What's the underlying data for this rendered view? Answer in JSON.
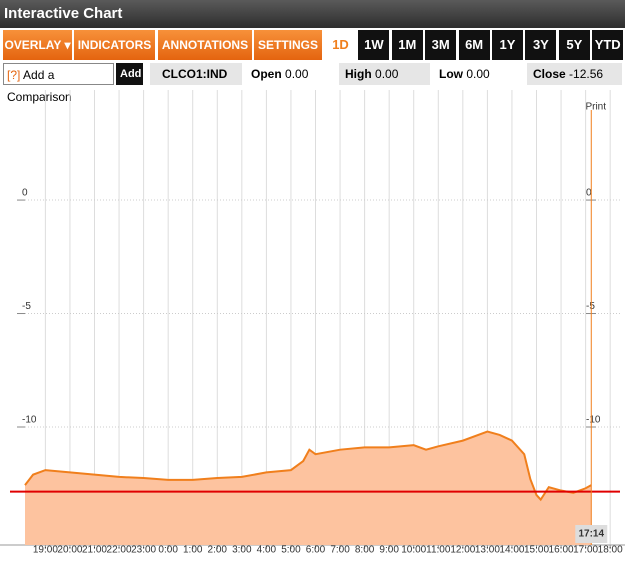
{
  "header": {
    "title": "Interactive Chart"
  },
  "toolbar": {
    "menus": [
      "OVERLAY",
      "INDICATORS",
      "ANNOTATIONS",
      "SETTINGS"
    ],
    "ranges": [
      "1D",
      "1W",
      "1M",
      "3M",
      "6M",
      "1Y",
      "3Y",
      "5Y",
      "YTD"
    ],
    "active_range_index": 0
  },
  "info_bar": {
    "help": "[?]",
    "comparison_placeholder": "Add a Comparison",
    "add_button": "Add",
    "ticker": "CLCO1:IND",
    "quotes": [
      {
        "label": "Open",
        "value": "0.00"
      },
      {
        "label": "High",
        "value": "0.00"
      },
      {
        "label": "Low",
        "value": "0.00"
      },
      {
        "label": "Close",
        "value": "-12.56"
      }
    ]
  },
  "chart_data": {
    "type": "area",
    "print_label": "Print",
    "x": [
      -0.83,
      -0.5,
      0,
      1,
      2,
      3,
      4,
      5,
      6,
      7,
      8,
      9,
      10,
      10.5,
      10.75,
      11,
      12,
      13,
      14,
      15,
      15.5,
      16,
      17,
      18,
      18.5,
      19,
      19.5,
      19.75,
      20,
      20.17,
      20.5,
      21,
      21.5,
      22,
      22.23
    ],
    "series": [
      {
        "color": "#f07f1c",
        "fill": "#fdc39f",
        "values": [
          -12.56,
          -12.1,
          -11.9,
          -12.0,
          -12.1,
          -12.2,
          -12.25,
          -12.33,
          -12.33,
          -12.25,
          -12.2,
          -12.0,
          -11.9,
          -11.5,
          -11.0,
          -11.2,
          -11.0,
          -10.9,
          -10.9,
          -10.8,
          -11.0,
          -10.85,
          -10.6,
          -10.2,
          -10.35,
          -10.6,
          -11.2,
          -12.3,
          -13.0,
          -13.2,
          -12.65,
          -12.8,
          -12.9,
          -12.7,
          -12.56
        ]
      }
    ],
    "reference_line": {
      "value": -12.85,
      "color": "#e00000"
    },
    "current_time": {
      "value": 22.23,
      "label": "17:14",
      "color": "#f07f1c"
    },
    "xlim": [
      -0.83,
      23.4
    ],
    "ylim": [
      -15.2,
      4.85
    ],
    "xticks": [
      {
        "value": 0,
        "label": "19:00"
      },
      {
        "value": 1,
        "label": "20:00"
      },
      {
        "value": 2,
        "label": "21:00"
      },
      {
        "value": 3,
        "label": "22:00"
      },
      {
        "value": 4,
        "label": "23:00"
      },
      {
        "value": 5,
        "label": "0:00"
      },
      {
        "value": 6,
        "label": "1:00"
      },
      {
        "value": 7,
        "label": "2:00"
      },
      {
        "value": 8,
        "label": "3:00"
      },
      {
        "value": 9,
        "label": "4:00"
      },
      {
        "value": 10,
        "label": "5:00"
      },
      {
        "value": 11,
        "label": "6:00"
      },
      {
        "value": 12,
        "label": "7:00"
      },
      {
        "value": 13,
        "label": "8:00"
      },
      {
        "value": 14,
        "label": "9:00"
      },
      {
        "value": 15,
        "label": "10:00"
      },
      {
        "value": 16,
        "label": "11:00"
      },
      {
        "value": 17,
        "label": "12:00"
      },
      {
        "value": 18,
        "label": "13:00"
      },
      {
        "value": 19,
        "label": "14:00"
      },
      {
        "value": 20,
        "label": "15:00"
      },
      {
        "value": 21,
        "label": "16:00"
      },
      {
        "value": 22,
        "label": "17:00"
      },
      {
        "value": 23,
        "label": "18:00"
      }
    ],
    "yticks": [
      0,
      -5,
      -10
    ],
    "grid": true
  }
}
